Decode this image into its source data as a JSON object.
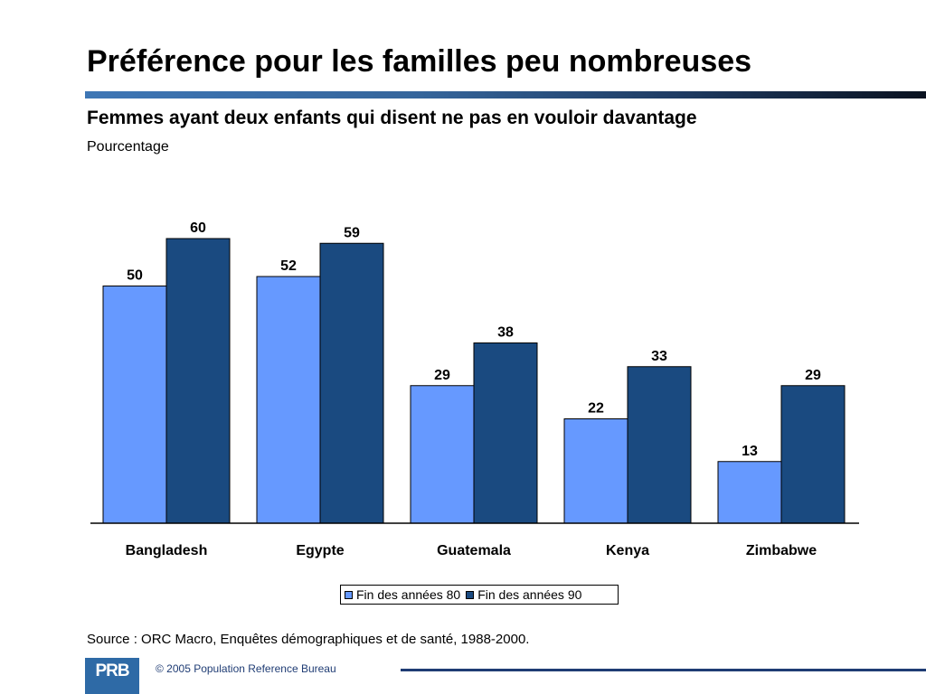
{
  "title": "Préférence pour les familles peu nombreuses",
  "subtitle": "Femmes ayant deux enfants qui disent ne pas en vouloir davantage",
  "unit": "Pourcentage",
  "source": "Source : ORC Macro, Enquêtes démographiques et de santé, 1988-2000.",
  "footer": {
    "logo_text": "PRB",
    "copyright": "© 2005 Population Reference Bureau"
  },
  "colors": {
    "series1": "#6699ff",
    "series2": "#1a4a80",
    "title_rule": "#3e76b5",
    "footer": "#1f3c74"
  },
  "chart_data": {
    "type": "bar",
    "title": "Préférence pour les familles peu nombreuses",
    "subtitle": "Femmes ayant deux enfants qui disent ne pas en vouloir davantage",
    "ylabel": "Pourcentage",
    "xlabel": "",
    "categories": [
      "Bangladesh",
      "Egypte",
      "Guatemala",
      "Kenya",
      "Zimbabwe"
    ],
    "series": [
      {
        "name": "Fin des années 80",
        "values": [
          50,
          52,
          29,
          22,
          13
        ],
        "color": "#6699ff"
      },
      {
        "name": "Fin des années 90",
        "values": [
          60,
          59,
          38,
          33,
          29
        ],
        "color": "#1a4a80"
      }
    ],
    "ylim": [
      0,
      60
    ],
    "grid": false,
    "data_labels": true,
    "legend_position": "bottom"
  }
}
